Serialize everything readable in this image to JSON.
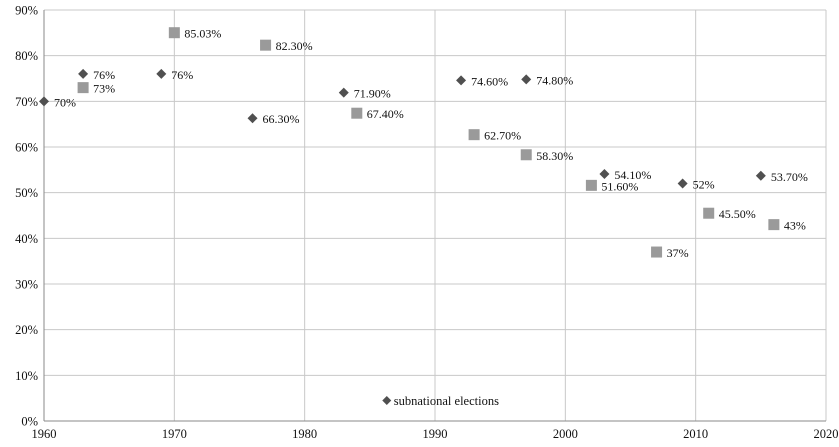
{
  "chart_data": {
    "type": "scatter",
    "title": "",
    "xlabel": "",
    "ylabel": "",
    "xlim": [
      1960,
      2020
    ],
    "ylim": [
      0,
      90
    ],
    "x_ticks": [
      "1960",
      "1970",
      "1980",
      "1990",
      "2000",
      "2010",
      "2020"
    ],
    "y_ticks": [
      "0%",
      "10%",
      "20%",
      "30%",
      "40%",
      "50%",
      "60%",
      "70%",
      "80%",
      "90%"
    ],
    "grid": true,
    "legend_position": "bottom-center",
    "series": [
      {
        "name": "subnational elections",
        "marker": "diamond",
        "color": "#505050",
        "points": [
          {
            "x": 1960,
            "y": 70,
            "label": "70%"
          },
          {
            "x": 1963,
            "y": 76,
            "label": "76%"
          },
          {
            "x": 1969,
            "y": 76,
            "label": "76%"
          },
          {
            "x": 1976,
            "y": 66.3,
            "label": "66.30%"
          },
          {
            "x": 1983,
            "y": 71.9,
            "label": "71.90%"
          },
          {
            "x": 1992,
            "y": 74.6,
            "label": "74.60%"
          },
          {
            "x": 1997,
            "y": 74.8,
            "label": "74.80%"
          },
          {
            "x": 2003,
            "y": 54.1,
            "label": "54.10%"
          },
          {
            "x": 2009,
            "y": 52,
            "label": "52%"
          },
          {
            "x": 2015,
            "y": 53.7,
            "label": "53.70%"
          }
        ]
      },
      {
        "marker": "square",
        "color": "#9a9a9a",
        "points": [
          {
            "x": 1963,
            "y": 73,
            "label": "73%"
          },
          {
            "x": 1970,
            "y": 85.03,
            "label": "85.03%"
          },
          {
            "x": 1977,
            "y": 82.3,
            "label": "82.30%"
          },
          {
            "x": 1984,
            "y": 67.4,
            "label": "67.40%"
          },
          {
            "x": 1993,
            "y": 62.7,
            "label": "62.70%"
          },
          {
            "x": 1997,
            "y": 58.3,
            "label": "58.30%"
          },
          {
            "x": 2002,
            "y": 51.6,
            "label": "51.60%"
          },
          {
            "x": 2007,
            "y": 37,
            "label": "37%"
          },
          {
            "x": 2011,
            "y": 45.5,
            "label": "45.50%"
          },
          {
            "x": 2016,
            "y": 43,
            "label": "43%"
          }
        ]
      }
    ]
  }
}
